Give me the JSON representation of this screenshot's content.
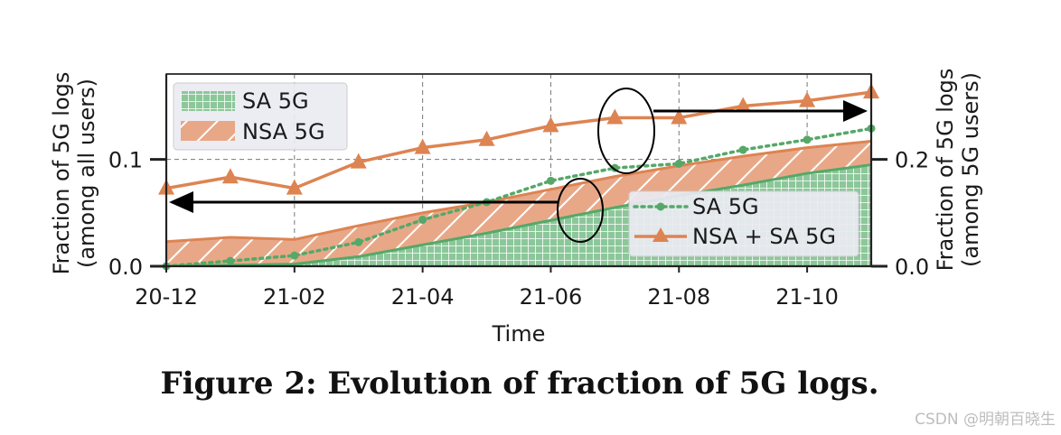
{
  "chart_data": {
    "type": "area",
    "caption": "Figure 2: Evolution of fraction of 5G logs.",
    "xlabel": "Time",
    "ylabel_left": [
      "Fraction of 5G logs",
      "(among all users)"
    ],
    "ylabel_right": [
      "Fraction of 5G logs",
      "(among 5G users)"
    ],
    "x_ticks": [
      "20-12",
      "21-02",
      "21-04",
      "21-06",
      "21-08",
      "21-10"
    ],
    "months": [
      "20-12",
      "21-01",
      "21-02",
      "21-03",
      "21-04",
      "21-05",
      "21-06",
      "21-07",
      "21-08",
      "21-09",
      "21-10",
      "21-11"
    ],
    "ylim_left": [
      0,
      0.18
    ],
    "ylim_right": [
      0,
      0.36
    ],
    "y_ticks_left": [
      "0.0",
      "0.1"
    ],
    "y_ticks_right": [
      "0.0",
      "0.2"
    ],
    "series_left": [
      {
        "name": "SA 5G",
        "style": "area",
        "values": [
          0.0,
          0.001,
          0.002,
          0.009,
          0.02,
          0.031,
          0.043,
          0.055,
          0.066,
          0.076,
          0.087,
          0.095
        ]
      },
      {
        "name": "NSA 5G",
        "style": "area",
        "values": [
          0.023,
          0.027,
          0.025,
          0.038,
          0.05,
          0.06,
          0.072,
          0.084,
          0.094,
          0.103,
          0.111,
          0.117
        ]
      }
    ],
    "series_right": [
      {
        "name": "SA 5G",
        "style": "dotted-line",
        "values": [
          0.0,
          0.01,
          0.02,
          0.045,
          0.087,
          0.12,
          0.16,
          0.184,
          0.192,
          0.218,
          0.237,
          0.258
        ]
      },
      {
        "name": "NSA + SA 5G",
        "style": "line",
        "values": [
          0.146,
          0.167,
          0.146,
          0.195,
          0.222,
          0.237,
          0.263,
          0.278,
          0.278,
          0.3,
          0.31,
          0.326
        ]
      }
    ],
    "legend_left": [
      "SA 5G",
      "NSA 5G"
    ],
    "legend_right": [
      "SA 5G",
      "NSA + SA 5G"
    ]
  },
  "watermark": "CSDN @明朝百晓生",
  "colors": {
    "green": "#55a868",
    "green_fill": "#8cc79a",
    "orange": "#dd8452",
    "orange_fill": "#e8a888",
    "plot_bg": "#ffffff",
    "legend_bg": "#eaeaf2"
  }
}
